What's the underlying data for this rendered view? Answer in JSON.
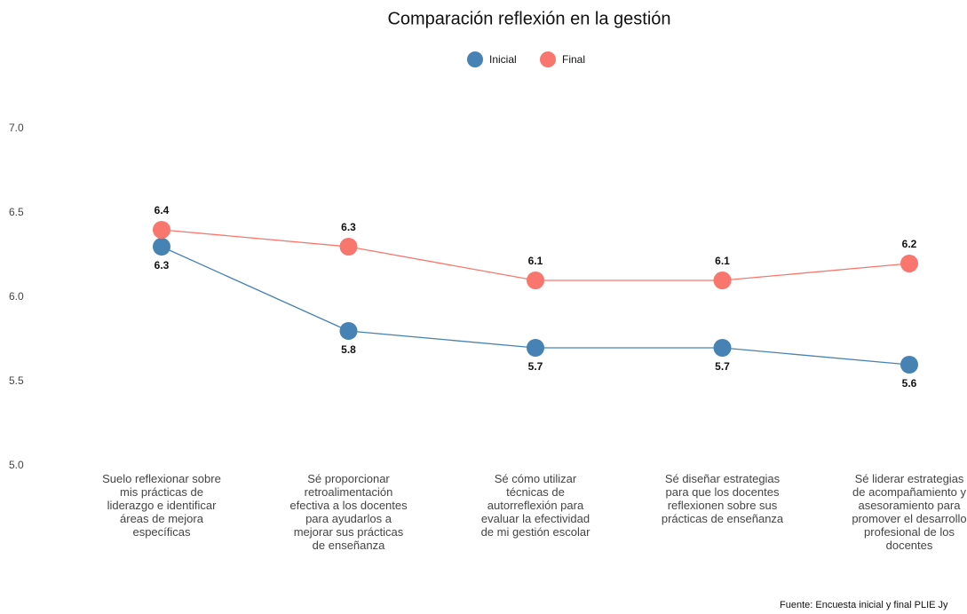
{
  "chart_data": {
    "type": "line",
    "title": "Comparación reflexión en la gestión",
    "categories": [
      "Suelo reflexionar sobre mis prácticas de liderazgo e identificar áreas de mejora específicas",
      "Sé proporcionar retroalimentación efectiva a los docentes para ayudarlos a mejorar sus prácticas de enseñanza",
      "Sé cómo utilizar técnicas de autorreflexión para evaluar la efectividad de mi gestión escolar",
      "Sé diseñar estrategias para que los docentes reflexionen sobre sus prácticas de enseñanza",
      "Sé liderar estrategias de acompañamiento y asesoramiento para promover el desarrollo profesional de los docentes"
    ],
    "series": [
      {
        "name": "Inicial",
        "color": "#4682b4",
        "values": [
          6.3,
          5.8,
          5.7,
          5.7,
          5.6
        ]
      },
      {
        "name": "Final",
        "color": "#f8766d",
        "values": [
          6.4,
          6.3,
          6.1,
          6.1,
          6.2
        ]
      }
    ],
    "ylim": [
      5.0,
      7.0
    ],
    "yticks": [
      {
        "value": 5,
        "label": "5.0"
      },
      {
        "value": 5.5,
        "label": "5.5"
      },
      {
        "value": 6,
        "label": "6.0"
      },
      {
        "value": 6.5,
        "label": "6.5"
      },
      {
        "value": 7,
        "label": "7.0"
      }
    ],
    "grid": false,
    "legend": "top",
    "caption": "Fuente: Encuesta inicial y final PLIE Jy"
  }
}
